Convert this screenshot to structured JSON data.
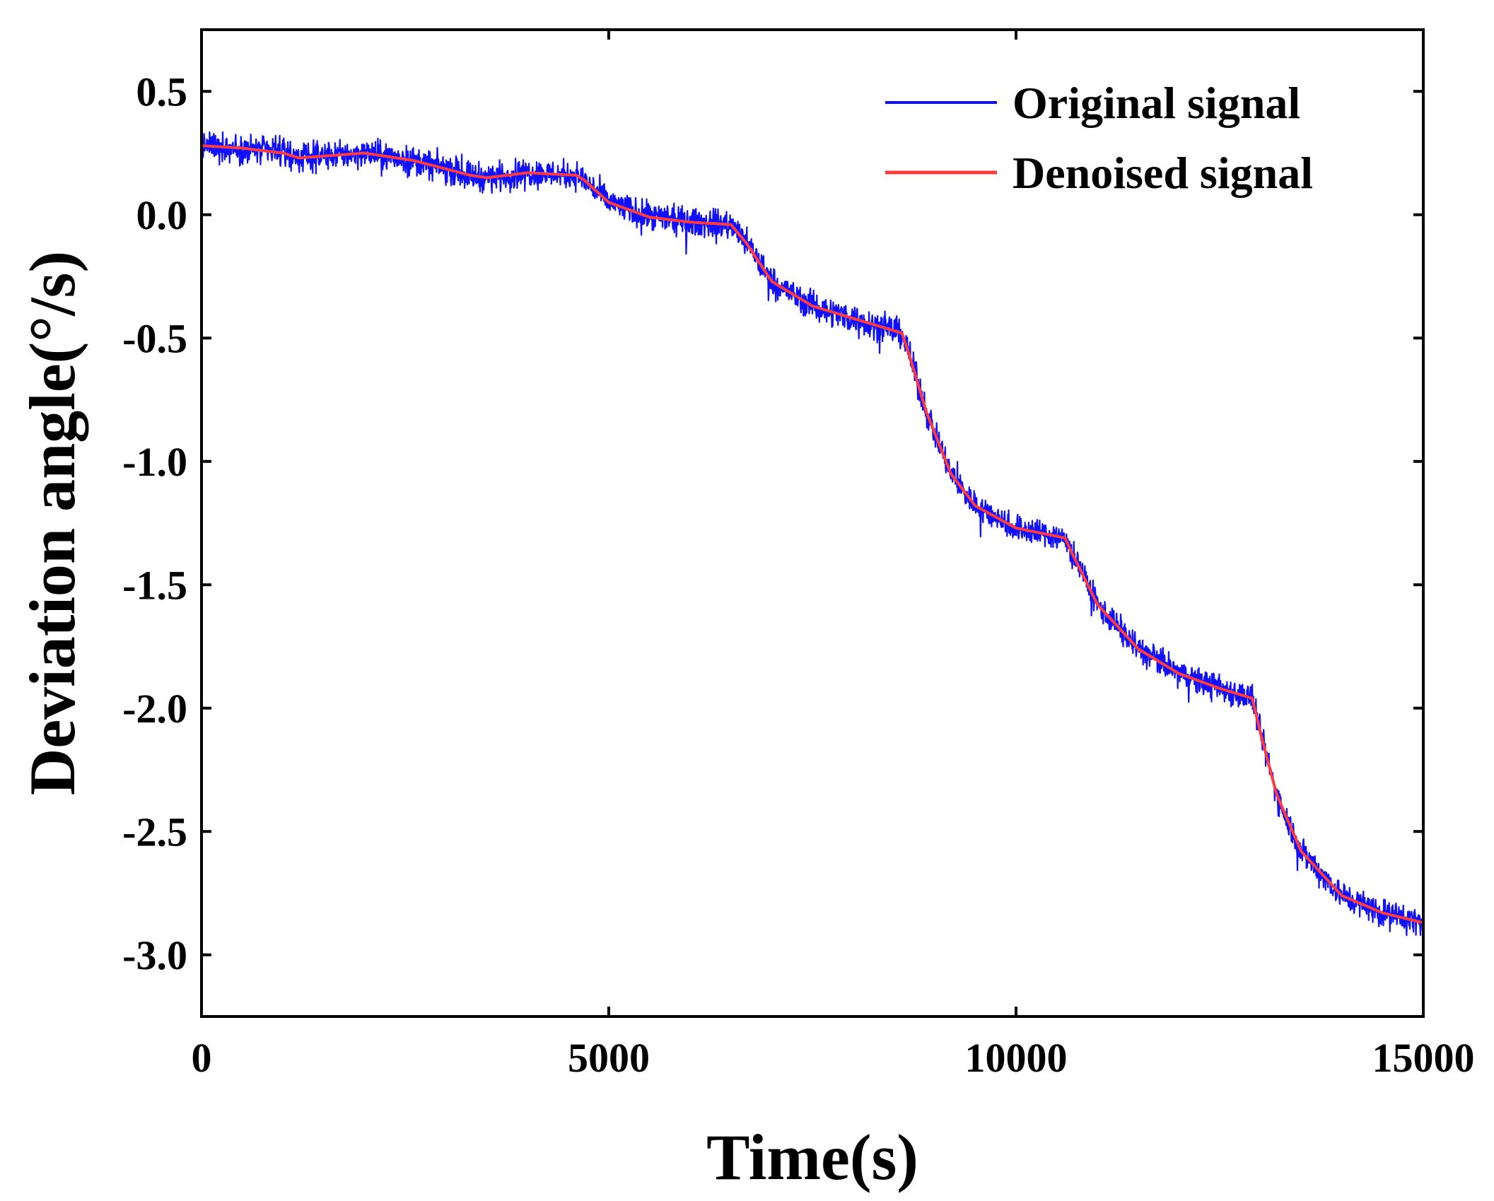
{
  "chart_data": {
    "type": "line",
    "title": "",
    "xlabel": "Time(s)",
    "ylabel": "Deviation angle(°/s)",
    "xlim": [
      0,
      15000
    ],
    "ylim": [
      -3.25,
      0.75
    ],
    "xticks": [
      0,
      5000,
      10000,
      15000
    ],
    "xtick_labels": [
      "0",
      "5000",
      "10000",
      "15000"
    ],
    "yticks": [
      0.5,
      0.0,
      -0.5,
      -1.0,
      -1.5,
      -2.0,
      -2.5,
      -3.0
    ],
    "ytick_labels": [
      "0.5",
      "0.0",
      "-0.5",
      "-1.0",
      "-1.5",
      "-2.0",
      "-2.5",
      "-3.0"
    ],
    "legend_position": "top-right",
    "colors": {
      "original": "#1010ff",
      "denoised": "#ff3b3b"
    },
    "series": [
      {
        "name": "Original signal",
        "style": "noisy",
        "noise_amplitude": 0.035,
        "x": [
          0,
          500,
          1000,
          1200,
          2000,
          2600,
          3300,
          3500,
          4000,
          4600,
          4700,
          5000,
          5500,
          6000,
          6500,
          6700,
          7000,
          7500,
          8000,
          8600,
          8700,
          8900,
          9200,
          9500,
          10000,
          10600,
          10700,
          11000,
          11500,
          12000,
          12500,
          12900,
          13000,
          13200,
          13500,
          14000,
          14500,
          15000
        ],
        "values": [
          0.28,
          0.27,
          0.25,
          0.23,
          0.25,
          0.22,
          0.16,
          0.15,
          0.17,
          0.16,
          0.14,
          0.05,
          -0.01,
          -0.03,
          -0.04,
          -0.12,
          -0.27,
          -0.37,
          -0.42,
          -0.48,
          -0.58,
          -0.8,
          -1.05,
          -1.18,
          -1.27,
          -1.31,
          -1.38,
          -1.58,
          -1.76,
          -1.86,
          -1.92,
          -1.96,
          -2.1,
          -2.35,
          -2.58,
          -2.76,
          -2.83,
          -2.87
        ]
      },
      {
        "name": "Denoised signal",
        "style": "smooth",
        "x": [
          0,
          500,
          1000,
          1200,
          2000,
          2600,
          3300,
          3500,
          4000,
          4600,
          4700,
          5000,
          5500,
          6000,
          6500,
          6700,
          7000,
          7500,
          8000,
          8600,
          8700,
          8900,
          9200,
          9500,
          10000,
          10600,
          10700,
          11000,
          11500,
          12000,
          12500,
          12900,
          13000,
          13200,
          13500,
          14000,
          14500,
          15000
        ],
        "values": [
          0.28,
          0.27,
          0.25,
          0.23,
          0.25,
          0.22,
          0.16,
          0.15,
          0.17,
          0.16,
          0.14,
          0.05,
          -0.01,
          -0.03,
          -0.04,
          -0.12,
          -0.27,
          -0.37,
          -0.42,
          -0.48,
          -0.58,
          -0.8,
          -1.05,
          -1.18,
          -1.27,
          -1.31,
          -1.38,
          -1.58,
          -1.76,
          -1.86,
          -1.92,
          -1.96,
          -2.1,
          -2.35,
          -2.58,
          -2.76,
          -2.83,
          -2.87
        ]
      }
    ]
  }
}
